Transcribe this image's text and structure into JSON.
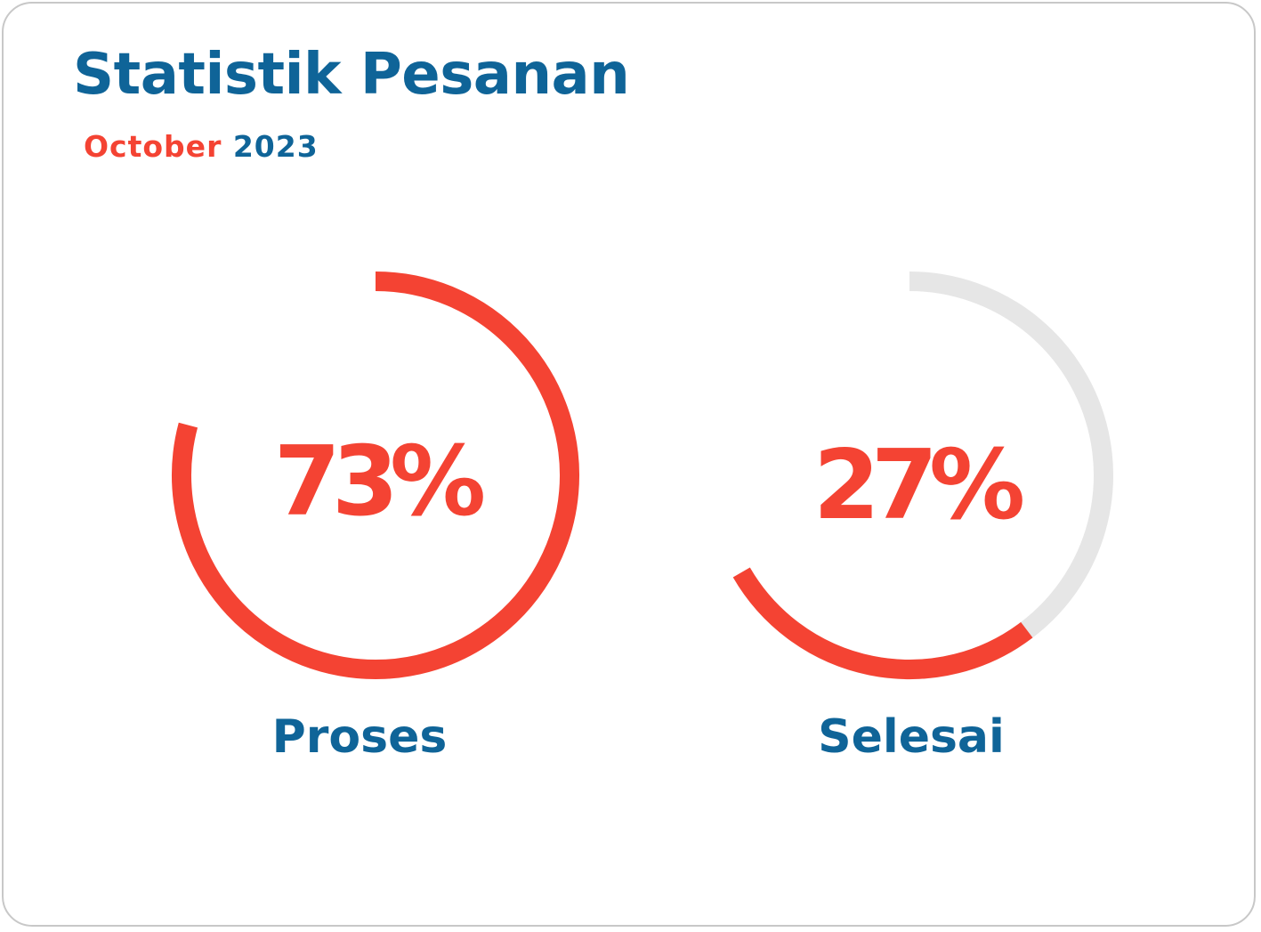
{
  "header": {
    "title": "Statistik Pesanan",
    "month": "October",
    "year": "2023"
  },
  "colors": {
    "title": "#0F6498",
    "accent": "#F44333",
    "track": "#E6E6E6"
  },
  "chart_data": {
    "type": "gauge",
    "title": "Statistik Pesanan",
    "subtitle": "October 2023",
    "series": [
      {
        "name": "Proses",
        "value": 73,
        "label": "73%",
        "track_visible": false
      },
      {
        "name": "Selesai",
        "value": 27,
        "label": "27%",
        "track_visible": true
      }
    ]
  }
}
